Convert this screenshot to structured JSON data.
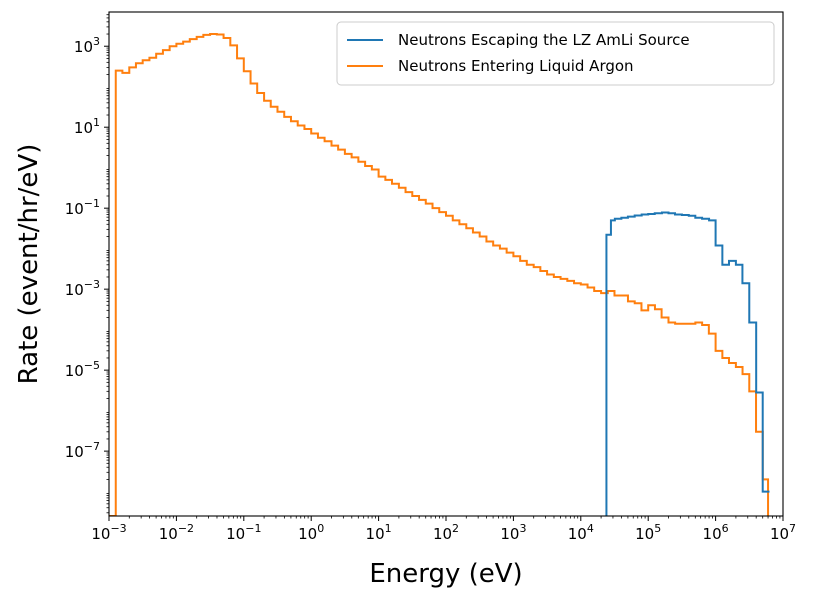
{
  "chart_data": {
    "type": "line",
    "title": "",
    "xlabel": "Energy (eV)",
    "ylabel": "Rate (event/hr/eV)",
    "xscale": "log",
    "yscale": "log",
    "xlim": [
      0.001,
      10000000
    ],
    "ylim": [
      2.5e-09,
      7000.0
    ],
    "grid": false,
    "legend": "top-right",
    "x_ticks": [
      {
        "value": 0.001,
        "base": "10",
        "exp": "−3"
      },
      {
        "value": 0.01,
        "base": "10",
        "exp": "−2"
      },
      {
        "value": 0.1,
        "base": "10",
        "exp": "−1"
      },
      {
        "value": 1,
        "base": "10",
        "exp": "0"
      },
      {
        "value": 10,
        "base": "10",
        "exp": "1"
      },
      {
        "value": 100,
        "base": "10",
        "exp": "2"
      },
      {
        "value": 1000,
        "base": "10",
        "exp": "3"
      },
      {
        "value": 10000,
        "base": "10",
        "exp": "4"
      },
      {
        "value": 100000,
        "base": "10",
        "exp": "5"
      },
      {
        "value": 1000000,
        "base": "10",
        "exp": "6"
      },
      {
        "value": 10000000,
        "base": "10",
        "exp": "7"
      }
    ],
    "y_ticks": [
      {
        "value": 1000.0,
        "base": "10",
        "exp": "3"
      },
      {
        "value": 10.0,
        "base": "10",
        "exp": "1"
      },
      {
        "value": 0.1,
        "base": "10",
        "exp": "−1"
      },
      {
        "value": 0.001,
        "base": "10",
        "exp": "−3"
      },
      {
        "value": 1e-05,
        "base": "10",
        "exp": "−5"
      },
      {
        "value": 1e-07,
        "base": "10",
        "exp": "−7"
      }
    ],
    "series": [
      {
        "name": "Neutrons Escaping the LZ AmLi Source",
        "color": "#1f77b4",
        "step": "post",
        "x": [
          24000,
          24000,
          28000,
          28000,
          32000,
          40000,
          50000,
          63000,
          80000,
          100000,
          125000,
          160000,
          200000,
          250000,
          316000,
          400000,
          500000,
          630000,
          800000,
          1000000,
          1000000,
          1260000,
          1260000,
          1580000,
          1580000,
          2000000,
          2000000,
          2500000,
          2500000,
          3160000,
          3160000,
          4000000,
          4000000,
          5000000,
          5000000,
          6300000
        ],
        "y": [
          2.5e-09,
          0.022,
          0.022,
          0.05,
          0.055,
          0.058,
          0.062,
          0.066,
          0.07,
          0.072,
          0.075,
          0.078,
          0.075,
          0.07,
          0.068,
          0.065,
          0.058,
          0.055,
          0.05,
          0.05,
          0.012,
          0.012,
          0.004,
          0.004,
          0.005,
          0.005,
          0.004,
          0.004,
          0.0014,
          0.0014,
          0.00015,
          0.00015,
          2.8e-06,
          2.8e-06,
          1e-08,
          1e-08
        ]
      },
      {
        "name": "Neutrons Entering Liquid Argon",
        "color": "#ff7f0e",
        "step": "post",
        "x": [
          0.001,
          0.00126,
          0.00158,
          0.002,
          0.00251,
          0.00316,
          0.00398,
          0.00501,
          0.00631,
          0.00794,
          0.01,
          0.0126,
          0.0158,
          0.02,
          0.0251,
          0.0316,
          0.0398,
          0.0501,
          0.0631,
          0.0794,
          0.1,
          0.126,
          0.158,
          0.2,
          0.251,
          0.316,
          0.398,
          0.501,
          0.631,
          0.794,
          1,
          1.26,
          1.58,
          2,
          2.51,
          3.16,
          3.98,
          5.01,
          6.31,
          7.94,
          10,
          12.6,
          15.8,
          20,
          25.1,
          31.6,
          39.8,
          50.1,
          63.1,
          79.4,
          100,
          126,
          158,
          200,
          251,
          316,
          398,
          501,
          631,
          794,
          1000,
          1260,
          1580,
          2000,
          2510,
          3160,
          3980,
          5010,
          6310,
          7940,
          10000,
          12600,
          15800,
          20000,
          25100,
          31600,
          39800,
          50100,
          63100,
          79400,
          100000,
          126000,
          158000,
          200000,
          251000,
          316000,
          398000,
          501000,
          631000,
          794000,
          1000000,
          1260000,
          1580000,
          2000000,
          2510000,
          3160000,
          3980000,
          5010000,
          6000000
        ],
        "y": [
          2.5e-09,
          250,
          220,
          300,
          380,
          450,
          520,
          650,
          800,
          1000,
          1150,
          1300,
          1500,
          1700,
          1900,
          2000,
          1950,
          1600,
          1050,
          500,
          240,
          120,
          70,
          45,
          32,
          24,
          18,
          14,
          11,
          9,
          7,
          5.5,
          4.5,
          3.5,
          2.8,
          2.2,
          1.8,
          1.4,
          1.1,
          0.9,
          0.6,
          0.5,
          0.4,
          0.32,
          0.25,
          0.2,
          0.16,
          0.13,
          0.1,
          0.08,
          0.065,
          0.05,
          0.04,
          0.032,
          0.025,
          0.02,
          0.015,
          0.012,
          0.01,
          0.008,
          0.0065,
          0.005,
          0.004,
          0.0035,
          0.0028,
          0.0023,
          0.002,
          0.0018,
          0.0016,
          0.0014,
          0.0013,
          0.0011,
          0.0009,
          0.0008,
          0.0009,
          0.0007,
          0.0007,
          0.0005,
          0.00045,
          0.0003,
          0.0004,
          0.00032,
          0.0002,
          0.00015,
          0.00014,
          0.00014,
          0.00014,
          0.00015,
          0.00013,
          8e-05,
          3e-05,
          2e-05,
          1.5e-05,
          1.2e-05,
          8e-06,
          3e-06,
          3e-07,
          2e-08,
          2.5e-09
        ]
      }
    ]
  }
}
